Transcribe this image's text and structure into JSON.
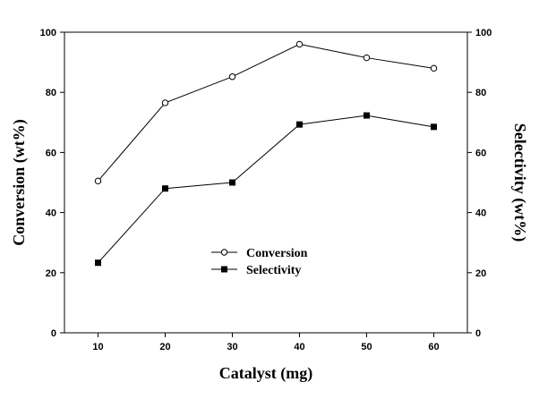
{
  "chart_data": {
    "type": "line",
    "title": "",
    "x": [
      10,
      20,
      30,
      40,
      50,
      60
    ],
    "xlabel": "Catalyst (mg)",
    "ylabel_left": "Conversion (wt%)",
    "ylabel_right": "Selectivity (wt%)",
    "xlim": [
      5,
      65
    ],
    "ylim": [
      0,
      100
    ],
    "yticks": [
      0,
      20,
      40,
      60,
      80,
      100
    ],
    "xticks": [
      10,
      20,
      30,
      40,
      50,
      60
    ],
    "grid": false,
    "legend_position": "center-left",
    "series": [
      {
        "name": "Conversion",
        "marker": "open-circle",
        "axis": "left",
        "values": [
          50.5,
          76.5,
          85.2,
          96.0,
          91.5,
          88.0
        ]
      },
      {
        "name": "Selectivity",
        "marker": "filled-square",
        "axis": "right",
        "values": [
          23.3,
          48.0,
          50.0,
          69.3,
          72.3,
          68.5
        ]
      }
    ]
  }
}
